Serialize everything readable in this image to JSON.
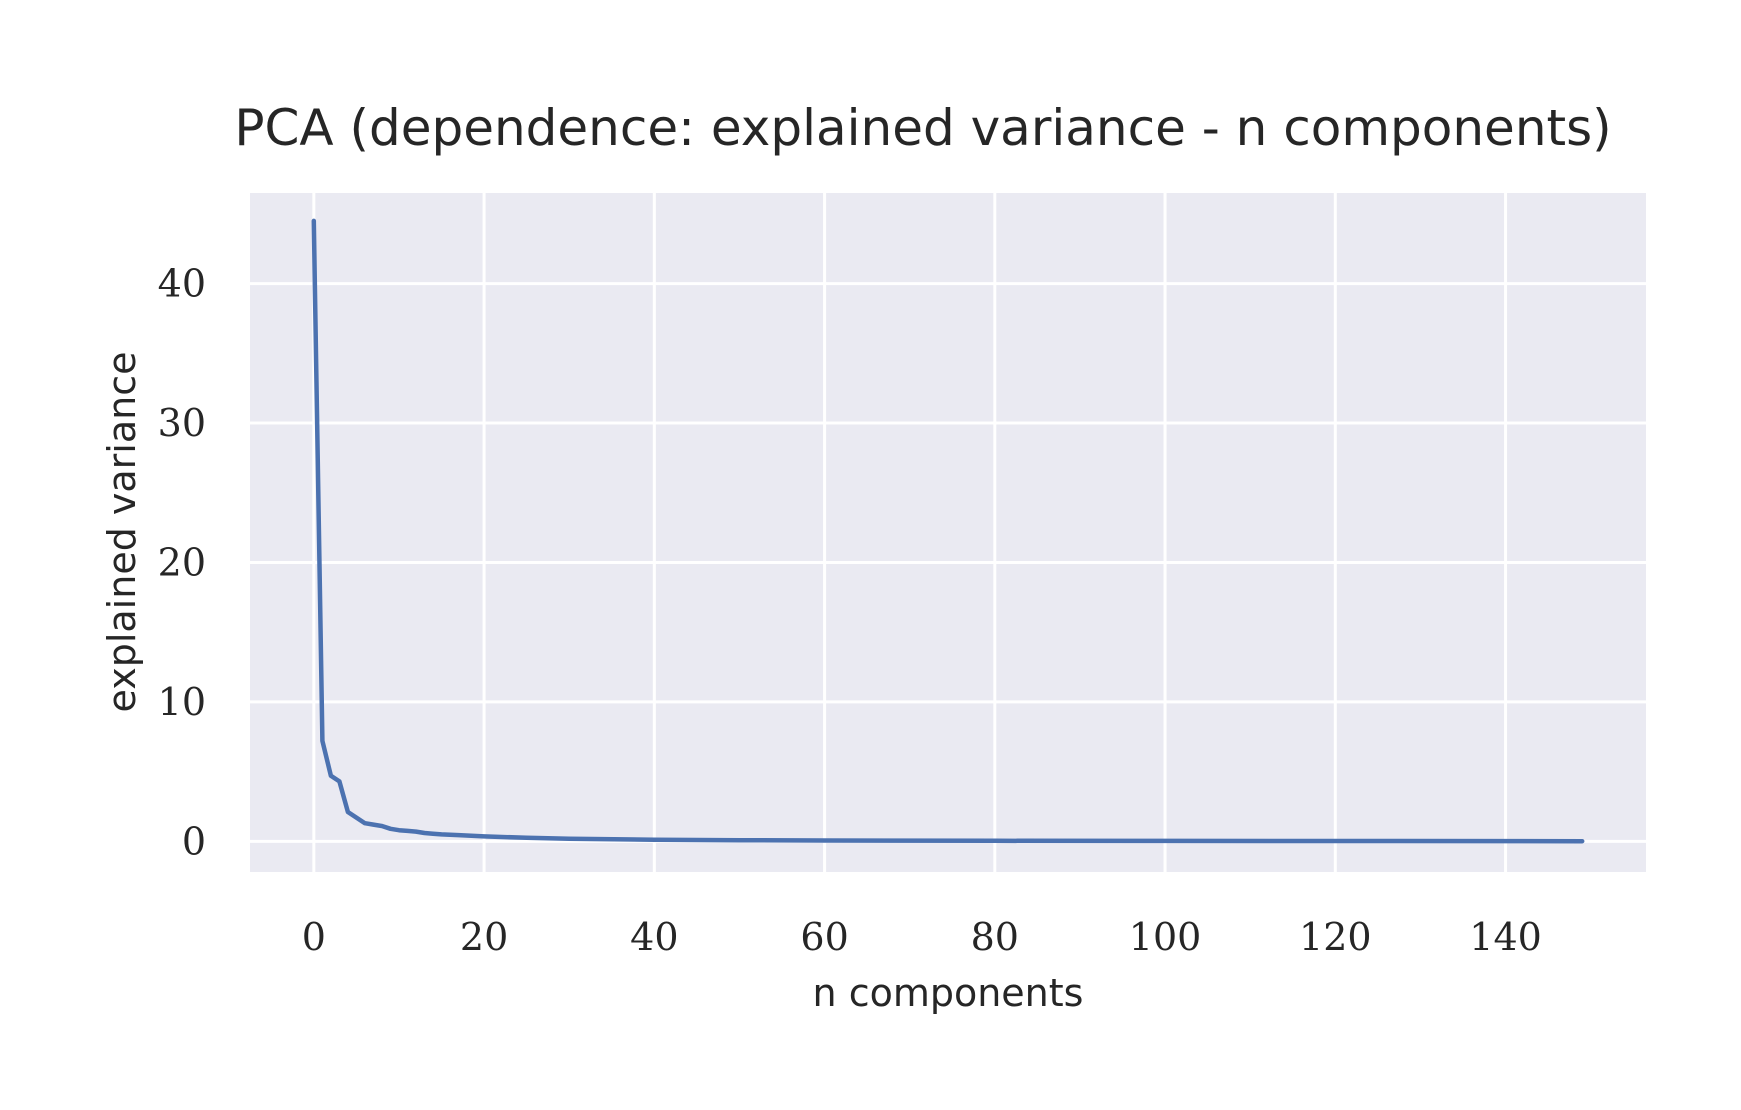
{
  "chart_data": {
    "type": "line",
    "title": "PCA (dependence: explained variance - n components)",
    "xlabel": "n components",
    "ylabel": "explained variance",
    "xlim": [
      -7.5,
      156.5
    ],
    "ylim": [
      -2.2,
      46.5
    ],
    "xticks": [
      0,
      20,
      40,
      60,
      80,
      100,
      120,
      140
    ],
    "yticks": [
      0,
      10,
      20,
      30,
      40
    ],
    "grid": true,
    "legend": "none",
    "colors": {
      "background": "#eaeaf2",
      "grid": "#ffffff",
      "line": "#4c72b0"
    },
    "series": [
      {
        "x": [
          0,
          1,
          2,
          3,
          4,
          5,
          6,
          7,
          8,
          9,
          10,
          11,
          12,
          13,
          14,
          15,
          17,
          20,
          25,
          30,
          40,
          50,
          60,
          80,
          100,
          120,
          149
        ],
        "values": [
          44.5,
          7.2,
          4.7,
          4.3,
          2.1,
          1.7,
          1.3,
          1.2,
          1.1,
          0.9,
          0.8,
          0.75,
          0.7,
          0.6,
          0.55,
          0.5,
          0.45,
          0.35,
          0.25,
          0.18,
          0.12,
          0.08,
          0.06,
          0.04,
          0.03,
          0.02,
          0.01
        ]
      }
    ]
  }
}
